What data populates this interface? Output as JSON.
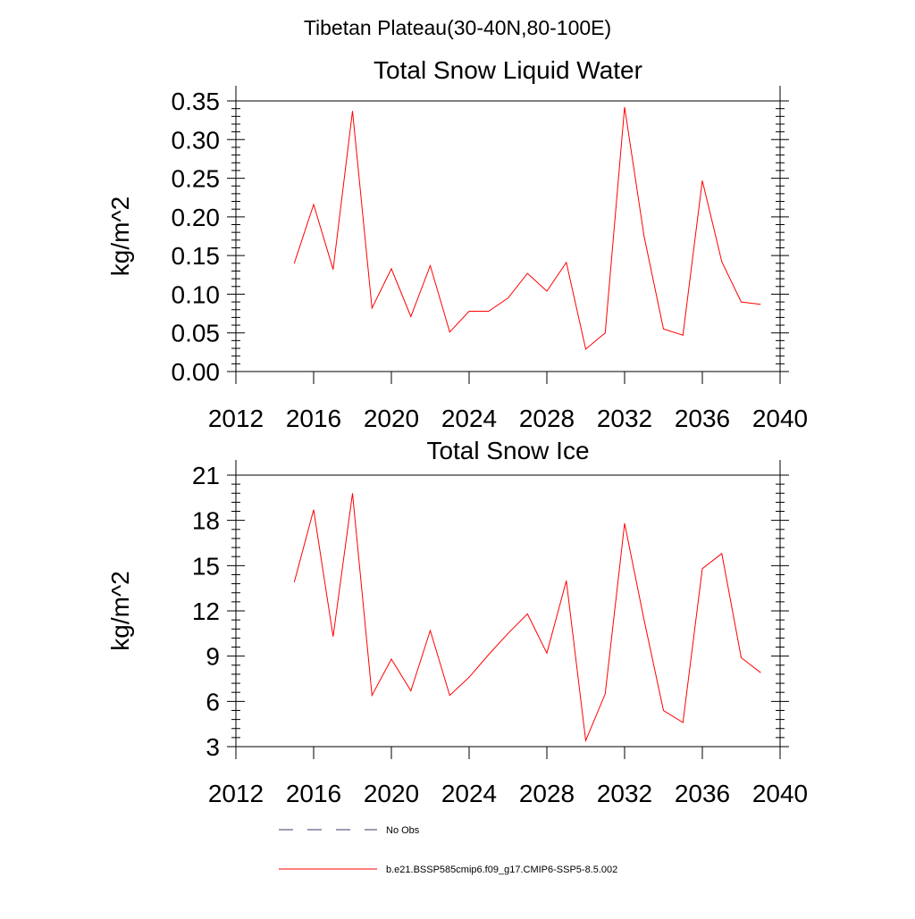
{
  "figure": {
    "suptitle": "Tibetan Plateau(30-40N,80-100E)"
  },
  "chart_data": [
    {
      "type": "line",
      "title": "Total Snow Liquid Water",
      "xlabel": "",
      "ylabel": "kg/m^2",
      "xlim": [
        2012,
        2040
      ],
      "ylim": [
        0.0,
        0.35
      ],
      "xticks": [
        2012,
        2016,
        2020,
        2024,
        2028,
        2032,
        2036,
        2040
      ],
      "xtick_labels": [
        "2012",
        "2016",
        "2020",
        "2024",
        "2028",
        "2032",
        "2036",
        "2040"
      ],
      "yticks": [
        0.0,
        0.05,
        0.1,
        0.15,
        0.2,
        0.25,
        0.3,
        0.35
      ],
      "ytick_labels": [
        "0.00",
        "0.05",
        "0.10",
        "0.15",
        "0.20",
        "0.25",
        "0.30",
        "0.35"
      ],
      "grid": false,
      "series": [
        {
          "name": "b.e21.BSSP585cmip6.f09_g17.CMIP6-SSP5-8.5.002",
          "color": "#ff0000",
          "x": [
            2015,
            2016,
            2017,
            2018,
            2019,
            2020,
            2021,
            2022,
            2023,
            2024,
            2025,
            2026,
            2027,
            2028,
            2029,
            2030,
            2031,
            2032,
            2033,
            2034,
            2035,
            2036,
            2037,
            2038,
            2039
          ],
          "y": [
            0.14,
            0.216,
            0.132,
            0.337,
            0.082,
            0.133,
            0.071,
            0.137,
            0.051,
            0.078,
            0.078,
            0.095,
            0.127,
            0.104,
            0.141,
            0.029,
            0.05,
            0.342,
            0.175,
            0.055,
            0.047,
            0.247,
            0.142,
            0.09,
            0.087
          ]
        }
      ]
    },
    {
      "type": "line",
      "title": "Total Snow Ice",
      "xlabel": "",
      "ylabel": "kg/m^2",
      "xlim": [
        2012,
        2040
      ],
      "ylim": [
        3,
        21
      ],
      "xticks": [
        2012,
        2016,
        2020,
        2024,
        2028,
        2032,
        2036,
        2040
      ],
      "xtick_labels": [
        "2012",
        "2016",
        "2020",
        "2024",
        "2028",
        "2032",
        "2036",
        "2040"
      ],
      "yticks": [
        3,
        6,
        9,
        12,
        15,
        18,
        21
      ],
      "ytick_labels": [
        "3",
        "6",
        "9",
        "12",
        "15",
        "18",
        "21"
      ],
      "grid": false,
      "series": [
        {
          "name": "b.e21.BSSP585cmip6.f09_g17.CMIP6-SSP5-8.5.002",
          "color": "#ff0000",
          "x": [
            2015,
            2016,
            2017,
            2018,
            2019,
            2020,
            2021,
            2022,
            2023,
            2024,
            2025,
            2026,
            2027,
            2028,
            2029,
            2030,
            2031,
            2032,
            2033,
            2034,
            2035,
            2036,
            2037,
            2038,
            2039
          ],
          "y": [
            13.9,
            18.7,
            10.3,
            19.8,
            6.4,
            8.8,
            6.7,
            10.7,
            6.4,
            7.6,
            9.1,
            10.5,
            11.8,
            9.2,
            14.0,
            3.4,
            6.5,
            17.8,
            11.4,
            5.4,
            4.6,
            14.8,
            15.8,
            8.9,
            7.9
          ]
        }
      ]
    }
  ],
  "legend": {
    "placement": "bottom",
    "entries": [
      {
        "label": "No Obs",
        "color": "#3a3a6e",
        "style": "dashed"
      },
      {
        "label": "b.e21.BSSP585cmip6.f09_g17.CMIP6-SSP5-8.5.002",
        "color": "#ff0000",
        "style": "solid"
      }
    ]
  }
}
